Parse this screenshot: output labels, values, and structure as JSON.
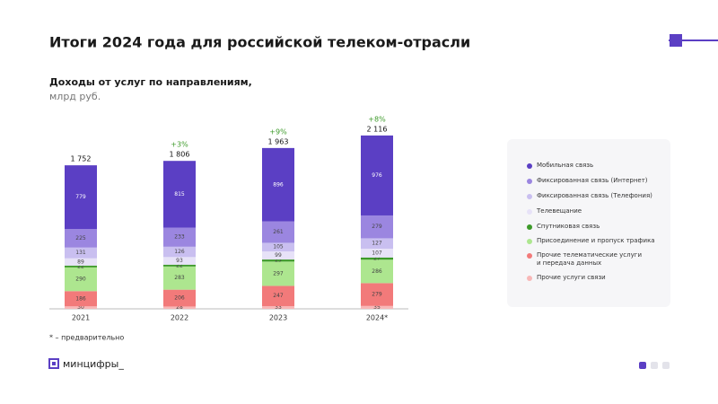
{
  "title": "Итоги 2024 года для российской телеком-отрасли",
  "subtitle": "Доходы от услуг по направлениям,",
  "unit": "млрд руб.",
  "footnote": "* – предварительно",
  "logo": "минцифры_",
  "chart_data": {
    "type": "stacked_bar",
    "categories": [
      "2021",
      "2022",
      "2023",
      "2024*"
    ],
    "ylim": [
      0,
      2400
    ],
    "series": [
      {
        "name": "Мобильная связь",
        "color": "#5b3fc4",
        "values": [
          779,
          815,
          896,
          976
        ]
      },
      {
        "name": "Фиксированная связь (Интернет)",
        "color": "#9b86e0",
        "values": [
          225,
          233,
          261,
          279
        ]
      },
      {
        "name": "Фиксированная связь (Телефония)",
        "color": "#c9bff0",
        "values": [
          131,
          126,
          105,
          127
        ]
      },
      {
        "name": "Телевещание",
        "color": "#e7e2f8",
        "values": [
          89,
          93,
          99,
          107
        ]
      },
      {
        "name": "Спутниковая связь",
        "color": "#3d9a2a",
        "values": [
          22,
          22,
          25,
          27
        ]
      },
      {
        "name": "Присоединение и пропуск трафика",
        "color": "#ade68f",
        "values": [
          290,
          283,
          297,
          286
        ]
      },
      {
        "name": "Прочие телематические услуги\nи передача данных",
        "color": "#f27a7a",
        "values": [
          186,
          206,
          247,
          279
        ]
      },
      {
        "name": "Прочие услуги связи",
        "color": "#f8b7b7",
        "values": [
          30,
          28,
          33,
          35
        ]
      }
    ],
    "totals": {
      "values": [
        1752,
        1806,
        1963,
        2116
      ],
      "value_labels": [
        "1 752",
        "1 806",
        "1 963",
        "2 116"
      ]
    },
    "growth_labels": [
      null,
      "+3%",
      "+9%",
      "+8%"
    ]
  }
}
